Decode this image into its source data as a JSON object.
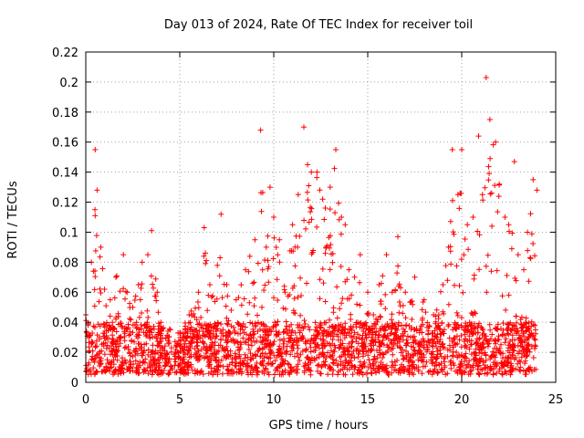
{
  "chart_data": {
    "type": "scatter",
    "title": "Day 013 of 2024, Rate Of TEC Index for receiver toil",
    "xlabel": "GPS time / hours",
    "ylabel": "ROTI / TECUs",
    "xlim": [
      0,
      25
    ],
    "ylim": [
      0,
      0.22
    ],
    "xticks": [
      0,
      5,
      10,
      15,
      20,
      25
    ],
    "xtick_labels": [
      "0",
      "5",
      "10",
      "15",
      "20",
      "25"
    ],
    "yticks": [
      0,
      0.02,
      0.04,
      0.06,
      0.08,
      0.1,
      0.12,
      0.14,
      0.16,
      0.18,
      0.2,
      0.22
    ],
    "ytick_labels": [
      "0",
      "0.02",
      "0.04",
      "0.06",
      "0.08",
      "0.1",
      "0.12",
      "0.14",
      "0.16",
      "0.18",
      "0.2",
      "0.22"
    ],
    "grid": true,
    "marker": "plus",
    "series_color": "#ff0000",
    "envelope": {
      "x": [
        0.0,
        0.3,
        0.5,
        0.6,
        0.8,
        1.0,
        1.3,
        1.6,
        2.0,
        2.2,
        2.5,
        2.8,
        3.0,
        3.3,
        3.5,
        3.8,
        4.0,
        4.5,
        5.0,
        5.5,
        6.0,
        6.3,
        6.6,
        7.0,
        7.2,
        7.5,
        8.0,
        8.5,
        9.0,
        9.3,
        9.6,
        9.8,
        10.0,
        10.3,
        10.6,
        11.0,
        11.3,
        11.6,
        11.8,
        12.0,
        12.3,
        12.6,
        13.0,
        13.3,
        13.6,
        13.8,
        14.0,
        14.3,
        14.6,
        15.0,
        15.3,
        15.6,
        16.0,
        16.3,
        16.6,
        17.0,
        17.5,
        18.0,
        18.5,
        19.0,
        19.3,
        19.5,
        19.8,
        20.0,
        20.3,
        20.6,
        20.9,
        21.1,
        21.3,
        21.5,
        21.8,
        22.0,
        22.3,
        22.5,
        22.8,
        23.0,
        23.3,
        23.5,
        23.8,
        24.0
      ],
      "y_max": [
        0.045,
        0.08,
        0.155,
        0.128,
        0.09,
        0.062,
        0.055,
        0.07,
        0.085,
        0.06,
        0.05,
        0.065,
        0.08,
        0.085,
        0.101,
        0.06,
        0.04,
        0.035,
        0.033,
        0.045,
        0.06,
        0.103,
        0.065,
        0.078,
        0.112,
        0.065,
        0.055,
        0.075,
        0.095,
        0.168,
        0.09,
        0.13,
        0.11,
        0.095,
        0.06,
        0.105,
        0.125,
        0.17,
        0.145,
        0.14,
        0.14,
        0.122,
        0.13,
        0.155,
        0.11,
        0.105,
        0.075,
        0.07,
        0.085,
        0.06,
        0.045,
        0.065,
        0.085,
        0.06,
        0.097,
        0.06,
        0.07,
        0.055,
        0.045,
        0.065,
        0.09,
        0.155,
        0.125,
        0.155,
        0.105,
        0.11,
        0.164,
        0.125,
        0.203,
        0.175,
        0.16,
        0.132,
        0.11,
        0.105,
        0.147,
        0.085,
        0.075,
        0.1,
        0.135,
        0.128
      ],
      "y_typical_max": 0.04,
      "y_floor": 0.005
    }
  }
}
